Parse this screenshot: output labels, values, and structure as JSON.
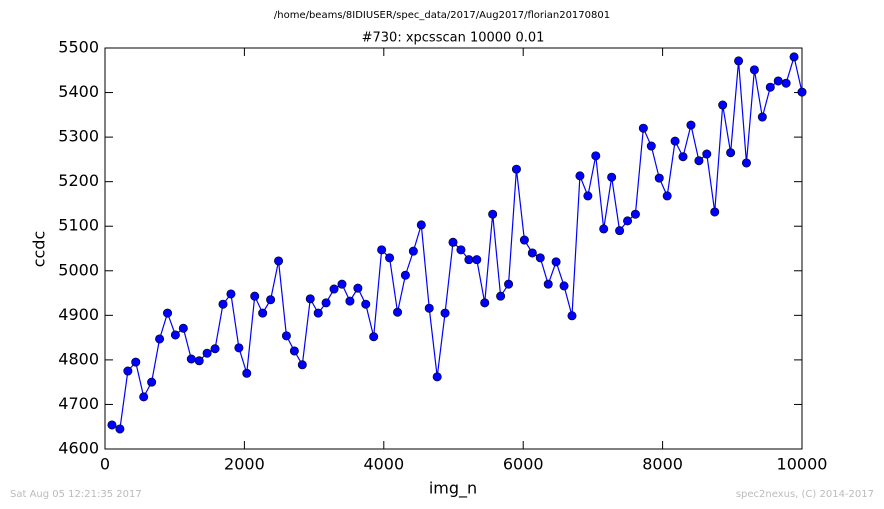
{
  "chart_data": {
    "type": "line",
    "suptitle": "/home/beams/8IDIUSER/spec_data/2017/Aug2017/florian20170801",
    "title": "#730: xpcsscan 10000 0.01",
    "x_label": "img_n",
    "y_label": "ccdc",
    "footer_left": "Sat Aug 05 12:21:35 2017",
    "footer_right": "spec2nexus, (C) 2014-2017",
    "xlim": [
      0,
      10000
    ],
    "xticks": [
      0,
      2000,
      4000,
      6000,
      8000,
      10000
    ],
    "ylim": [
      4600,
      5500
    ],
    "yticks": [
      4600,
      4700,
      4800,
      4900,
      5000,
      5100,
      5200,
      5300,
      5400,
      5500
    ],
    "grid": false,
    "x": [
      100,
      214,
      328,
      441,
      555,
      669,
      783,
      897,
      1010,
      1124,
      1238,
      1352,
      1465,
      1579,
      1693,
      1807,
      1921,
      2034,
      2148,
      2262,
      2376,
      2490,
      2603,
      2717,
      2831,
      2945,
      3059,
      3172,
      3286,
      3400,
      3514,
      3628,
      3741,
      3855,
      3969,
      4083,
      4197,
      4310,
      4424,
      4538,
      4652,
      4766,
      4879,
      4993,
      5107,
      5221,
      5334,
      5448,
      5562,
      5676,
      5790,
      5903,
      6017,
      6131,
      6245,
      6359,
      6472,
      6586,
      6700,
      6814,
      6928,
      7041,
      7155,
      7269,
      7383,
      7497,
      7610,
      7724,
      7838,
      7952,
      8066,
      8179,
      8293,
      8407,
      8521,
      8634,
      8748,
      8862,
      8976,
      9090,
      9203,
      9317,
      9431,
      9545,
      9659,
      9772,
      9886,
      10000
    ],
    "series": [
      {
        "name": "ccdc",
        "color": "#0000ff",
        "values": [
          4654,
          4645,
          4775,
          4795,
          4717,
          4750,
          4847,
          4905,
          4856,
          4871,
          4802,
          4798,
          4815,
          4825,
          4925,
          4948,
          4827,
          4770,
          4943,
          4905,
          4935,
          5022,
          4854,
          4820,
          4789,
          4937,
          4905,
          4928,
          4959,
          4970,
          4932,
          4961,
          4925,
          4852,
          5047,
          5029,
          4907,
          4990,
          5044,
          5103,
          4916,
          4762,
          4905,
          5064,
          5047,
          5025,
          5025,
          4928,
          5127,
          4943,
          4970,
          5228,
          5069,
          5040,
          5029,
          4970,
          5020,
          4966,
          4899,
          5213,
          5168,
          5258,
          5094,
          5210,
          5090,
          5112,
          5127,
          5320,
          5280,
          5208,
          5168,
          5291,
          5256,
          5327,
          5247,
          5262,
          5132,
          5372,
          5265,
          5471,
          5242,
          5451,
          5345,
          5412,
          5426,
          5421,
          5480,
          5401
        ]
      }
    ]
  }
}
